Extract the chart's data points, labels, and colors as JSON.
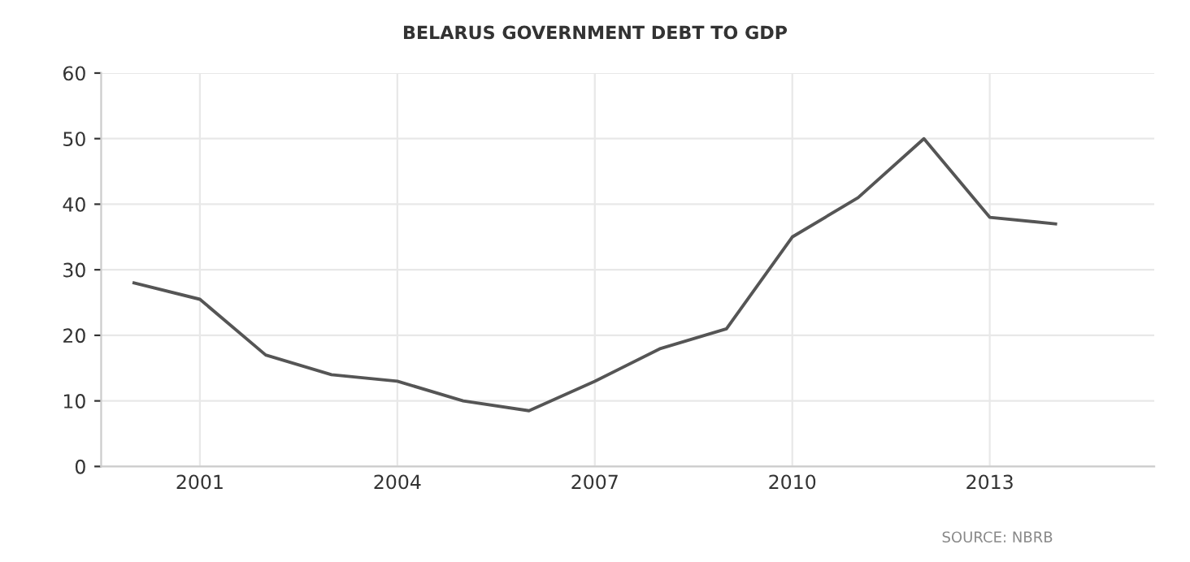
{
  "chart_data": {
    "type": "line",
    "title": "BELARUS GOVERNMENT DEBT TO GDP",
    "x": [
      2000,
      2001,
      2002,
      2003,
      2004,
      2005,
      2006,
      2007,
      2008,
      2009,
      2010,
      2011,
      2012,
      2013,
      2014
    ],
    "series": [
      {
        "color": "#555555",
        "values": [
          28,
          25.5,
          17,
          14,
          13,
          10,
          8.5,
          13,
          18,
          21,
          35,
          41,
          50,
          38,
          37
        ]
      }
    ],
    "xlim": [
      1999.5,
      2015.5
    ],
    "xticks": [
      2001,
      2004,
      2007,
      2010,
      2013
    ],
    "ylim": [
      0,
      60
    ],
    "yticks": [
      0,
      10,
      20,
      30,
      40,
      50,
      60
    ],
    "grid": true,
    "marker": "none",
    "line_style": "solid",
    "annotations": [
      "SOURCE: NBRB"
    ]
  }
}
